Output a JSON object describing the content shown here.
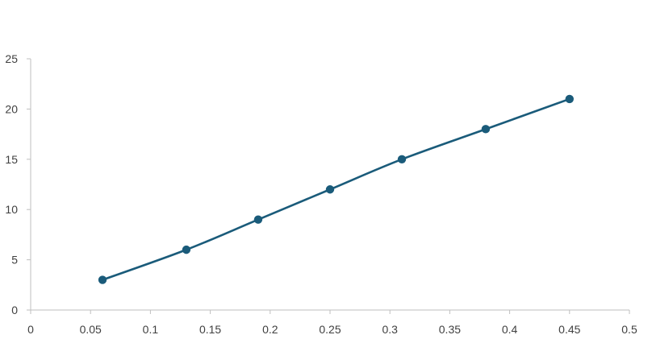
{
  "chart_data": {
    "type": "scatter",
    "title": "",
    "xlabel": "",
    "ylabel": "",
    "xlim": [
      0,
      0.5
    ],
    "ylim": [
      0,
      25
    ],
    "x_ticks": [
      0,
      0.05,
      0.1,
      0.15,
      0.2,
      0.25,
      0.3,
      0.35,
      0.4,
      0.45,
      0.5
    ],
    "x_tick_labels": [
      "0",
      "0.05",
      "0.1",
      "0.15",
      "0.2",
      "0.25",
      "0.3",
      "0.35",
      "0.4",
      "0.45",
      "0.5"
    ],
    "y_ticks": [
      0,
      5,
      10,
      15,
      20,
      25
    ],
    "y_tick_labels": [
      "0",
      "5",
      "10",
      "15",
      "20",
      "25"
    ],
    "grid": false,
    "legend": "none",
    "series": [
      {
        "color": "#1a5b7a",
        "marker": "circle",
        "line": "smooth",
        "x": [
          0.06,
          0.13,
          0.19,
          0.25,
          0.31,
          0.38,
          0.45
        ],
        "y": [
          3,
          6,
          9,
          12,
          15,
          18,
          21
        ]
      }
    ]
  }
}
